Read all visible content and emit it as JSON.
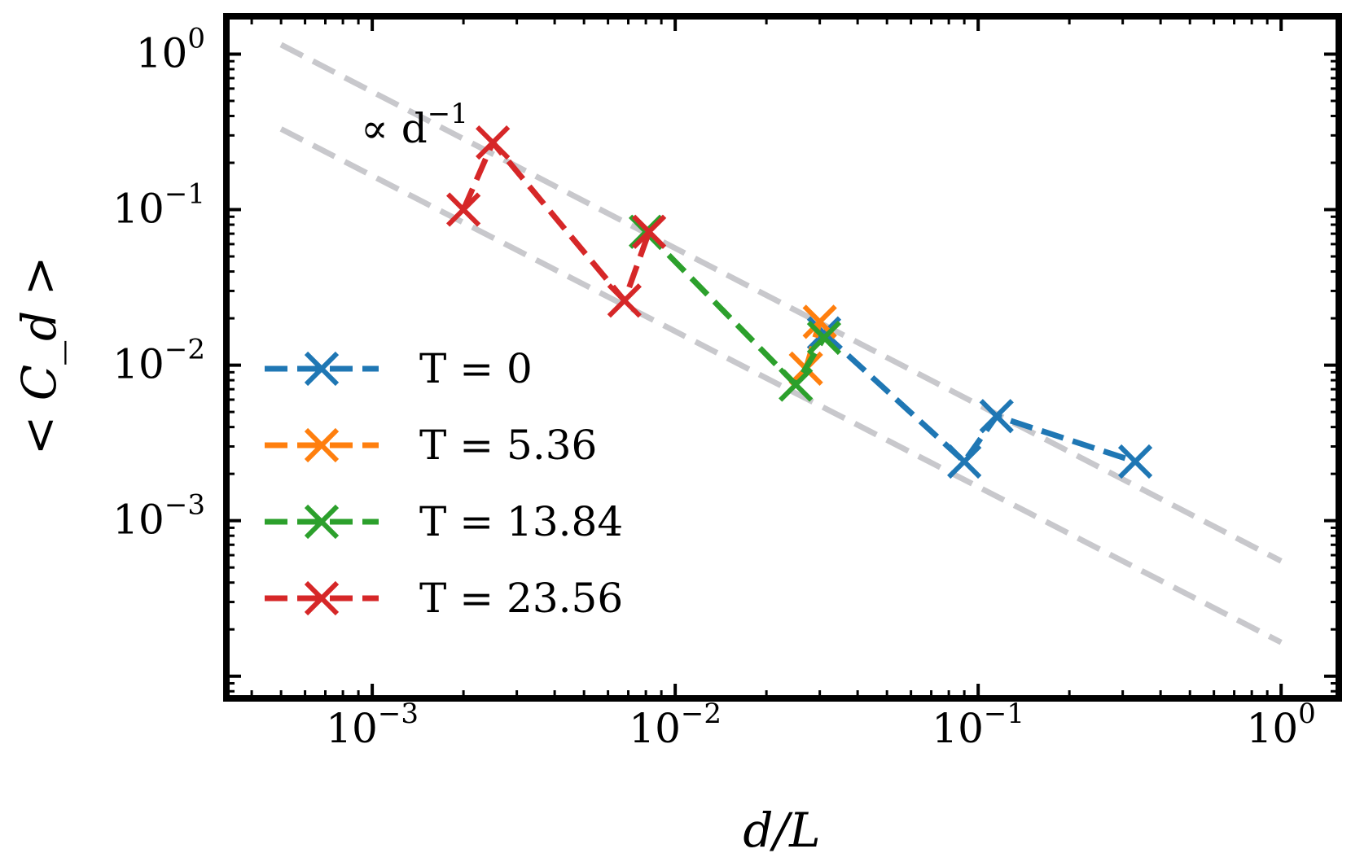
{
  "chart_data": {
    "type": "line",
    "scale": {
      "x": "log",
      "y": "log"
    },
    "xlabel": "d/L",
    "ylabel": "< C_d >",
    "xlim": [
      0.00033,
      1.55
    ],
    "ylim": [
      7.2e-05,
      1.75
    ],
    "x_ticks": [
      {
        "value": 0.001,
        "base": "10",
        "exp": "−3"
      },
      {
        "value": 0.01,
        "base": "10",
        "exp": "−2"
      },
      {
        "value": 0.1,
        "base": "10",
        "exp": "−1"
      },
      {
        "value": 1,
        "base": "10",
        "exp": "0"
      }
    ],
    "y_ticks": [
      {
        "value": 0.001,
        "base": "10",
        "exp": "−3"
      },
      {
        "value": 0.01,
        "base": "10",
        "exp": "−2"
      },
      {
        "value": 0.1,
        "base": "10",
        "exp": "−1"
      },
      {
        "value": 1,
        "base": "10",
        "exp": "0"
      }
    ],
    "series": [
      {
        "name": "T = 0",
        "color": "#1f77b4",
        "x": [
          0.031,
          0.09,
          0.115,
          0.33
        ],
        "y": [
          0.016,
          0.0024,
          0.0047,
          0.0024
        ]
      },
      {
        "name": "T = 5.36",
        "color": "#ff7f0e",
        "x": [
          0.027,
          0.03
        ],
        "y": [
          0.0095,
          0.019
        ]
      },
      {
        "name": "T = 13.84",
        "color": "#2ca02c",
        "x": [
          0.008,
          0.025,
          0.031
        ],
        "y": [
          0.072,
          0.0075,
          0.015
        ]
      },
      {
        "name": "T = 23.56",
        "color": "#d62728",
        "x": [
          0.002,
          0.0025,
          0.0068,
          0.0082
        ],
        "y": [
          0.1,
          0.27,
          0.026,
          0.072
        ]
      }
    ],
    "reference_lines": [
      {
        "label": "∝ d",
        "label_exp": "−1",
        "color": "#c8c8cc",
        "x": [
          0.0005,
          1.0
        ],
        "y": [
          1.15,
          0.00055
        ]
      },
      {
        "label": "",
        "color": "#c8c8cc",
        "x": [
          0.0005,
          1.0
        ],
        "y": [
          0.33,
          0.000165
        ]
      }
    ],
    "legend": "lower-left"
  }
}
